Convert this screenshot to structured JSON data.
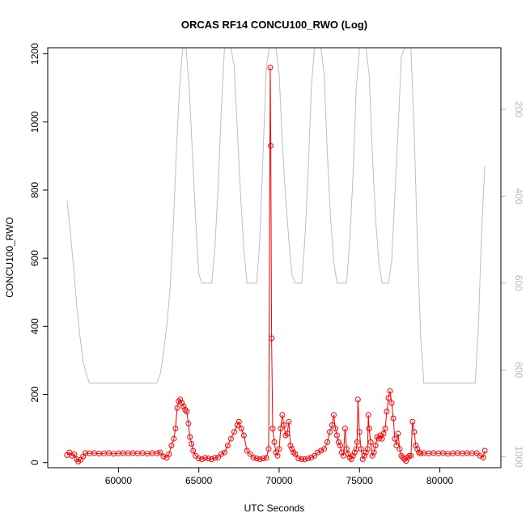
{
  "chart_data": {
    "type": "line",
    "title": "ORCAS RF14 CONCU100_RWO (Log)",
    "xlabel": "UTC Seconds",
    "ylabel": "CONCU100_RWO",
    "xlim": [
      55600,
      83800
    ],
    "ylim": [
      -15,
      1218
    ],
    "x_ticks": [
      60000,
      65000,
      70000,
      75000,
      80000
    ],
    "x_tick_labels": [
      "60000",
      "65000",
      "70000",
      "75000",
      "80000"
    ],
    "y_ticks": [
      0,
      200,
      400,
      600,
      800,
      1000,
      1200
    ],
    "y_tick_labels": [
      "0",
      "200",
      "400",
      "600",
      "800",
      "1000",
      "1200"
    ],
    "y2_reversed": true,
    "y2lim": [
      1025,
      58
    ],
    "y2_ticks": [
      200,
      400,
      600,
      800,
      1000
    ],
    "y2_tick_labels": [
      "200",
      "400",
      "600",
      "800",
      "1000"
    ],
    "grid": false,
    "colors": {
      "primary": "#ff0000",
      "secondary": "#bebebe"
    },
    "series": [
      {
        "axis": "left",
        "style": "line+open-circles",
        "color": "#ff0000",
        "x": [
          56800,
          56950,
          57100,
          57250,
          57400,
          57500,
          57650,
          57800,
          57950,
          58200,
          58500,
          58800,
          59100,
          59400,
          59700,
          60000,
          60300,
          60600,
          60900,
          61200,
          61500,
          61800,
          62100,
          62400,
          62600,
          62800,
          63000,
          63150,
          63300,
          63450,
          63550,
          63650,
          63750,
          63850,
          63950,
          64050,
          64150,
          64250,
          64350,
          64450,
          64550,
          64650,
          64800,
          65000,
          65200,
          65400,
          65600,
          65800,
          66000,
          66200,
          66400,
          66600,
          66800,
          67000,
          67200,
          67400,
          67500,
          67650,
          67800,
          68000,
          68200,
          68400,
          68600,
          68800,
          69000,
          69200,
          69350,
          69450,
          69480,
          69530,
          69600,
          69700,
          69800,
          69900,
          70000,
          70100,
          70200,
          70300,
          70400,
          70500,
          70600,
          70700,
          70800,
          70900,
          71000,
          71200,
          71400,
          71600,
          71800,
          72000,
          72200,
          72400,
          72600,
          72800,
          73000,
          73150,
          73300,
          73400,
          73500,
          73600,
          73700,
          73800,
          73900,
          74000,
          74100,
          74200,
          74300,
          74400,
          74500,
          74600,
          74700,
          74800,
          74850,
          74900,
          75000,
          75100,
          75200,
          75300,
          75400,
          75500,
          75550,
          75600,
          75700,
          75800,
          75900,
          76000,
          76100,
          76200,
          76300,
          76400,
          76500,
          76600,
          76700,
          76800,
          76900,
          77000,
          77100,
          77200,
          77300,
          77400,
          77500,
          77600,
          77700,
          77800,
          77900,
          78000,
          78100,
          78200,
          78300,
          78400,
          78500,
          78600,
          78700,
          78800,
          79000,
          79300,
          79600,
          79900,
          80200,
          80500,
          80800,
          81100,
          81400,
          81700,
          82000,
          82300,
          82500,
          82700,
          82800
        ],
        "y": [
          22,
          30,
          20,
          25,
          10,
          3,
          8,
          18,
          28,
          27,
          28,
          26,
          27,
          28,
          26,
          27,
          28,
          27,
          28,
          27,
          28,
          26,
          28,
          27,
          30,
          18,
          15,
          25,
          50,
          70,
          100,
          160,
          180,
          185,
          175,
          165,
          155,
          150,
          115,
          75,
          55,
          35,
          20,
          12,
          10,
          14,
          12,
          10,
          14,
          15,
          25,
          30,
          50,
          70,
          90,
          110,
          120,
          100,
          80,
          35,
          25,
          15,
          12,
          10,
          12,
          14,
          40,
          1160,
          930,
          365,
          100,
          60,
          30,
          20,
          40,
          100,
          140,
          110,
          80,
          85,
          120,
          50,
          40,
          30,
          25,
          12,
          10,
          10,
          12,
          15,
          20,
          30,
          35,
          40,
          60,
          90,
          110,
          140,
          100,
          80,
          60,
          50,
          30,
          20,
          100,
          40,
          25,
          15,
          10,
          20,
          30,
          40,
          60,
          185,
          90,
          40,
          10,
          20,
          30,
          40,
          140,
          100,
          60,
          20,
          30,
          50,
          75,
          70,
          80,
          70,
          85,
          100,
          150,
          190,
          210,
          175,
          130,
          70,
          50,
          85,
          40,
          20,
          15,
          10,
          5,
          15,
          20,
          20,
          120,
          90,
          50,
          40,
          30,
          27,
          28,
          27,
          28,
          27,
          28,
          26,
          27,
          28,
          27,
          28,
          27,
          28,
          20,
          15,
          35
        ]
      },
      {
        "axis": "right",
        "style": "line",
        "color": "#bebebe",
        "x": [
          56800,
          57000,
          57200,
          57400,
          57600,
          57800,
          58000,
          58200,
          58600,
          59000,
          59500,
          60000,
          60500,
          61000,
          61500,
          62000,
          62200,
          62400,
          62600,
          62800,
          63000,
          63200,
          63400,
          63600,
          63800,
          64000,
          64200,
          64400,
          64600,
          64800,
          65000,
          65200,
          65400,
          65600,
          65800,
          66000,
          66200,
          66400,
          66600,
          66800,
          67000,
          67200,
          67400,
          67600,
          67800,
          68000,
          68200,
          68400,
          68600,
          68800,
          69000,
          69200,
          69400,
          69600,
          69800,
          70000,
          70200,
          70400,
          70600,
          70800,
          71000,
          71200,
          71400,
          71600,
          71800,
          72000,
          72200,
          72400,
          72600,
          72800,
          73000,
          73200,
          73400,
          73600,
          73800,
          74000,
          74200,
          74400,
          74600,
          74800,
          75000,
          75200,
          75400,
          75600,
          75800,
          76000,
          76200,
          76400,
          76600,
          76800,
          77000,
          77200,
          77400,
          77600,
          77800,
          78000,
          78200,
          78400,
          78600,
          78800,
          79000,
          79500,
          80000,
          80500,
          81000,
          81500,
          82000,
          82200,
          82400,
          82600,
          82800
        ],
        "y": [
          410,
          480,
          560,
          650,
          720,
          780,
          810,
          830,
          830,
          830,
          830,
          830,
          830,
          830,
          830,
          830,
          830,
          830,
          810,
          760,
          700,
          620,
          480,
          300,
          150,
          58,
          58,
          150,
          300,
          450,
          580,
          600,
          600,
          600,
          600,
          520,
          380,
          200,
          58,
          58,
          58,
          100,
          250,
          400,
          520,
          600,
          600,
          600,
          600,
          500,
          300,
          100,
          58,
          58,
          58,
          120,
          280,
          400,
          500,
          580,
          600,
          600,
          600,
          500,
          350,
          150,
          58,
          58,
          58,
          120,
          300,
          450,
          550,
          600,
          600,
          600,
          600,
          500,
          350,
          150,
          58,
          58,
          58,
          120,
          300,
          450,
          550,
          600,
          600,
          600,
          550,
          400,
          250,
          80,
          58,
          58,
          58,
          250,
          500,
          720,
          830,
          830,
          830,
          830,
          830,
          830,
          830,
          830,
          700,
          480,
          330
        ]
      }
    ]
  }
}
